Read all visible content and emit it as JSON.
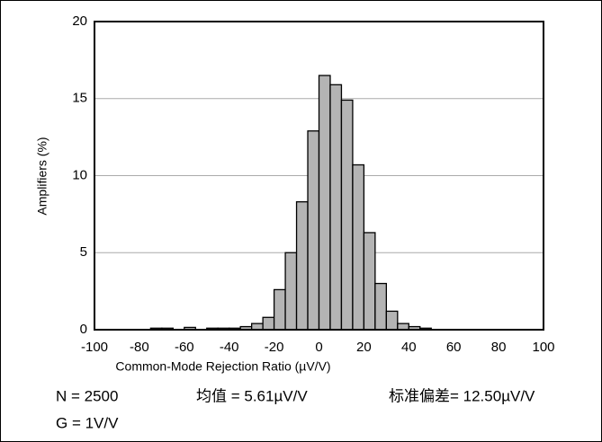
{
  "chart_data": {
    "type": "histogram",
    "x_label": "Common-Mode Rejection Ratio (µV/V)",
    "y_label": "Amplifiers (%)",
    "bins": [
      -100,
      -95,
      -90,
      -85,
      -80,
      -75,
      -70,
      -65,
      -60,
      -55,
      -50,
      -45,
      -40,
      -35,
      -30,
      -25,
      -20,
      -15,
      -10,
      -5,
      0,
      5,
      10,
      15,
      20,
      25,
      30,
      35,
      40,
      45,
      50,
      55,
      60,
      65,
      70,
      75,
      80,
      85,
      90,
      95,
      100
    ],
    "values": [
      0,
      0,
      0,
      0,
      0,
      0.1,
      0.1,
      0,
      0.15,
      0,
      0.1,
      0.1,
      0.1,
      0.2,
      0.4,
      0.8,
      2.6,
      5.0,
      8.3,
      12.9,
      16.5,
      15.9,
      14.9,
      10.7,
      6.3,
      3.0,
      1.2,
      0.4,
      0.2,
      0.1,
      0,
      0,
      0,
      0,
      0,
      0,
      0,
      0,
      0,
      0
    ],
    "color": "#b4b4b4",
    "xlim": [
      -100,
      100
    ],
    "xticks": [
      -100,
      -80,
      -60,
      -40,
      -20,
      0,
      20,
      40,
      60,
      80,
      100
    ],
    "ylim": [
      0,
      20
    ],
    "yticks": [
      0,
      5,
      10,
      15,
      20
    ],
    "grid": true,
    "annotations": [
      "N = 2500",
      "均值 = 5.61µV/V",
      "标准偏差= 12.50µV/V",
      "G = 1V/V"
    ]
  }
}
